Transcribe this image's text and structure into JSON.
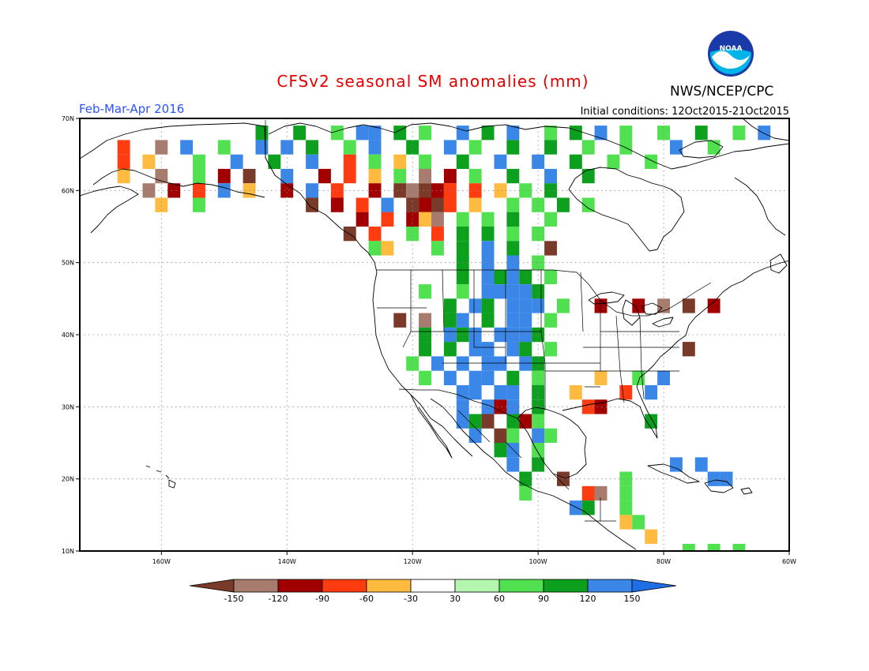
{
  "header": {
    "title": "CFSv2 seasonal SM anomalies (mm)",
    "agency": "NWS/NCEP/CPC",
    "logo_text": "NOAA",
    "period": "Feb-Mar-Apr 2016",
    "initial_conditions": "Initial conditions: 12Oct2015-21Oct2015"
  },
  "map": {
    "lon_range": [
      -173,
      -60
    ],
    "lat_range": [
      10,
      70
    ],
    "x_ticks": [
      {
        "lon": -160,
        "label": "160W"
      },
      {
        "lon": -140,
        "label": "140W"
      },
      {
        "lon": -120,
        "label": "120W"
      },
      {
        "lon": -100,
        "label": "100W"
      },
      {
        "lon": -80,
        "label": "80W"
      },
      {
        "lon": -60,
        "label": "60W"
      }
    ],
    "y_ticks": [
      {
        "lat": 70,
        "label": "70N"
      },
      {
        "lat": 60,
        "label": "60N"
      },
      {
        "lat": 50,
        "label": "50N"
      },
      {
        "lat": 40,
        "label": "40N"
      },
      {
        "lat": 30,
        "label": "30N"
      },
      {
        "lat": 20,
        "label": "20N"
      },
      {
        "lat": 10,
        "label": "10N"
      }
    ]
  },
  "colorbar": {
    "colors": [
      "#7a3a2a",
      "#a87b6f",
      "#a10000",
      "#ff3b10",
      "#ffba40",
      "#ffffff",
      "#b4f5b0",
      "#50e050",
      "#0ca01e",
      "#3a87e8",
      "#1e6ee8"
    ],
    "labels": [
      "-150",
      "-120",
      "-90",
      "-60",
      "-30",
      "30",
      "60",
      "90",
      "120",
      "150"
    ]
  },
  "chart_data": {
    "type": "heatmap",
    "title": "CFSv2 seasonal SM anomalies (mm)",
    "units": "mm",
    "valid_period": "Feb-Mar-Apr 2016",
    "initial_conditions": "12Oct2015-21Oct2015",
    "grid_resolution_deg": 2,
    "cells": [
      [
        -144,
        68,
        90
      ],
      [
        -138,
        68,
        90
      ],
      [
        -132,
        68,
        60
      ],
      [
        -128,
        68,
        150
      ],
      [
        -126,
        68,
        150
      ],
      [
        -122,
        68,
        90
      ],
      [
        -118,
        68,
        60
      ],
      [
        -112,
        68,
        120
      ],
      [
        -108,
        68,
        90
      ],
      [
        -104,
        68,
        120
      ],
      [
        -98,
        68,
        60
      ],
      [
        -94,
        68,
        90
      ],
      [
        -90,
        68,
        120
      ],
      [
        -86,
        68,
        60
      ],
      [
        -80,
        68,
        60
      ],
      [
        -74,
        68,
        90
      ],
      [
        -68,
        68,
        60
      ],
      [
        -64,
        68,
        120
      ],
      [
        -166,
        66,
        -60
      ],
      [
        -160,
        66,
        -120
      ],
      [
        -156,
        66,
        150
      ],
      [
        -150,
        66,
        60
      ],
      [
        -144,
        66,
        150
      ],
      [
        -140,
        66,
        120
      ],
      [
        -136,
        66,
        90
      ],
      [
        -130,
        66,
        60
      ],
      [
        -126,
        66,
        150
      ],
      [
        -120,
        66,
        90
      ],
      [
        -114,
        66,
        120
      ],
      [
        -110,
        66,
        60
      ],
      [
        -104,
        66,
        90
      ],
      [
        -98,
        66,
        90
      ],
      [
        -92,
        66,
        60
      ],
      [
        -86,
        66,
        60
      ],
      [
        -78,
        66,
        150
      ],
      [
        -72,
        66,
        60
      ],
      [
        -166,
        64,
        -60
      ],
      [
        -162,
        64,
        -30
      ],
      [
        -154,
        64,
        60
      ],
      [
        -148,
        64,
        150
      ],
      [
        -142,
        64,
        90
      ],
      [
        -136,
        64,
        150
      ],
      [
        -130,
        64,
        -60
      ],
      [
        -126,
        64,
        60
      ],
      [
        -122,
        64,
        -30
      ],
      [
        -118,
        64,
        60
      ],
      [
        -112,
        64,
        90
      ],
      [
        -106,
        64,
        120
      ],
      [
        -100,
        64,
        120
      ],
      [
        -94,
        64,
        90
      ],
      [
        -88,
        64,
        60
      ],
      [
        -82,
        64,
        60
      ],
      [
        -166,
        62,
        -30
      ],
      [
        -160,
        62,
        -120
      ],
      [
        -154,
        62,
        60
      ],
      [
        -150,
        62,
        -90
      ],
      [
        -146,
        62,
        -150
      ],
      [
        -140,
        62,
        150
      ],
      [
        -134,
        62,
        -90
      ],
      [
        -130,
        62,
        -60
      ],
      [
        -126,
        62,
        -30
      ],
      [
        -122,
        62,
        60
      ],
      [
        -118,
        62,
        -120
      ],
      [
        -114,
        62,
        -90
      ],
      [
        -110,
        62,
        60
      ],
      [
        -104,
        62,
        90
      ],
      [
        -98,
        62,
        120
      ],
      [
        -92,
        62,
        90
      ],
      [
        -162,
        60,
        -120
      ],
      [
        -158,
        60,
        -90
      ],
      [
        -154,
        60,
        -60
      ],
      [
        -150,
        60,
        150
      ],
      [
        -146,
        60,
        -30
      ],
      [
        -140,
        60,
        -90
      ],
      [
        -136,
        60,
        150
      ],
      [
        -132,
        60,
        -60
      ],
      [
        -126,
        60,
        -90
      ],
      [
        -122,
        60,
        -150
      ],
      [
        -120,
        60,
        -120
      ],
      [
        -118,
        60,
        -150
      ],
      [
        -116,
        60,
        -90
      ],
      [
        -114,
        60,
        -60
      ],
      [
        -110,
        60,
        -60
      ],
      [
        -106,
        60,
        -30
      ],
      [
        -102,
        60,
        60
      ],
      [
        -98,
        60,
        90
      ],
      [
        -160,
        58,
        -30
      ],
      [
        -154,
        58,
        60
      ],
      [
        -136,
        58,
        -150
      ],
      [
        -132,
        58,
        -90
      ],
      [
        -128,
        58,
        -60
      ],
      [
        -124,
        58,
        150
      ],
      [
        -120,
        58,
        -150
      ],
      [
        -118,
        58,
        -90
      ],
      [
        -116,
        58,
        -150
      ],
      [
        -114,
        58,
        -60
      ],
      [
        -110,
        58,
        -30
      ],
      [
        -104,
        58,
        60
      ],
      [
        -100,
        58,
        60
      ],
      [
        -96,
        58,
        90
      ],
      [
        -92,
        58,
        60
      ],
      [
        -128,
        56,
        -90
      ],
      [
        -124,
        56,
        -60
      ],
      [
        -120,
        56,
        -90
      ],
      [
        -118,
        56,
        -30
      ],
      [
        -116,
        56,
        -120
      ],
      [
        -112,
        56,
        60
      ],
      [
        -108,
        56,
        60
      ],
      [
        -104,
        56,
        90
      ],
      [
        -98,
        56,
        60
      ],
      [
        -130,
        54,
        -150
      ],
      [
        -126,
        54,
        -60
      ],
      [
        -120,
        54,
        60
      ],
      [
        -116,
        54,
        -60
      ],
      [
        -112,
        54,
        90
      ],
      [
        -108,
        54,
        90
      ],
      [
        -104,
        54,
        60
      ],
      [
        -100,
        54,
        60
      ],
      [
        -126,
        52,
        60
      ],
      [
        -124,
        52,
        -30
      ],
      [
        -116,
        52,
        60
      ],
      [
        -112,
        52,
        90
      ],
      [
        -108,
        52,
        120
      ],
      [
        -104,
        52,
        90
      ],
      [
        -98,
        52,
        -150
      ],
      [
        -112,
        50,
        90
      ],
      [
        -108,
        50,
        120
      ],
      [
        -104,
        50,
        120
      ],
      [
        -100,
        50,
        60
      ],
      [
        -112,
        48,
        90
      ],
      [
        -108,
        48,
        120
      ],
      [
        -106,
        48,
        90
      ],
      [
        -104,
        48,
        120
      ],
      [
        -102,
        48,
        90
      ],
      [
        -98,
        48,
        60
      ],
      [
        -118,
        46,
        60
      ],
      [
        -112,
        46,
        60
      ],
      [
        -108,
        46,
        120
      ],
      [
        -106,
        46,
        150
      ],
      [
        -104,
        46,
        120
      ],
      [
        -102,
        46,
        150
      ],
      [
        -100,
        46,
        90
      ],
      [
        -114,
        44,
        90
      ],
      [
        -110,
        44,
        120
      ],
      [
        -108,
        44,
        90
      ],
      [
        -104,
        44,
        150
      ],
      [
        -102,
        44,
        120
      ],
      [
        -100,
        44,
        150
      ],
      [
        -96,
        44,
        60
      ],
      [
        -90,
        44,
        -90
      ],
      [
        -84,
        44,
        -90
      ],
      [
        -80,
        44,
        -120
      ],
      [
        -76,
        44,
        -150
      ],
      [
        -72,
        44,
        -90
      ],
      [
        -122,
        42,
        -150
      ],
      [
        -118,
        42,
        -120
      ],
      [
        -114,
        42,
        90
      ],
      [
        -112,
        42,
        120
      ],
      [
        -108,
        42,
        90
      ],
      [
        -104,
        42,
        120
      ],
      [
        -102,
        42,
        150
      ],
      [
        -98,
        42,
        60
      ],
      [
        -118,
        40,
        90
      ],
      [
        -114,
        40,
        120
      ],
      [
        -112,
        40,
        90
      ],
      [
        -110,
        40,
        150
      ],
      [
        -106,
        40,
        120
      ],
      [
        -104,
        40,
        150
      ],
      [
        -102,
        40,
        120
      ],
      [
        -100,
        40,
        90
      ],
      [
        -118,
        38,
        90
      ],
      [
        -114,
        38,
        90
      ],
      [
        -110,
        38,
        120
      ],
      [
        -108,
        38,
        150
      ],
      [
        -104,
        38,
        150
      ],
      [
        -102,
        38,
        90
      ],
      [
        -98,
        38,
        60
      ],
      [
        -76,
        38,
        -150
      ],
      [
        -120,
        36,
        60
      ],
      [
        -116,
        36,
        120
      ],
      [
        -112,
        36,
        150
      ],
      [
        -108,
        36,
        150
      ],
      [
        -106,
        36,
        120
      ],
      [
        -102,
        36,
        150
      ],
      [
        -100,
        36,
        90
      ],
      [
        -118,
        34,
        60
      ],
      [
        -114,
        34,
        150
      ],
      [
        -110,
        34,
        150
      ],
      [
        -108,
        34,
        120
      ],
      [
        -104,
        34,
        90
      ],
      [
        -100,
        34,
        60
      ],
      [
        -90,
        34,
        -30
      ],
      [
        -84,
        34,
        60
      ],
      [
        -80,
        34,
        150
      ],
      [
        -112,
        32,
        120
      ],
      [
        -110,
        32,
        150
      ],
      [
        -106,
        32,
        150
      ],
      [
        -104,
        32,
        120
      ],
      [
        -100,
        32,
        90
      ],
      [
        -94,
        32,
        -30
      ],
      [
        -86,
        32,
        -60
      ],
      [
        -82,
        32,
        120
      ],
      [
        -112,
        30,
        150
      ],
      [
        -108,
        30,
        150
      ],
      [
        -106,
        30,
        -90
      ],
      [
        -104,
        30,
        120
      ],
      [
        -100,
        30,
        90
      ],
      [
        -92,
        30,
        -60
      ],
      [
        -90,
        30,
        -90
      ],
      [
        -112,
        28,
        150
      ],
      [
        -110,
        28,
        90
      ],
      [
        -108,
        28,
        -150
      ],
      [
        -104,
        28,
        90
      ],
      [
        -102,
        28,
        -90
      ],
      [
        -100,
        28,
        60
      ],
      [
        -82,
        28,
        90
      ],
      [
        -110,
        26,
        120
      ],
      [
        -106,
        26,
        -150
      ],
      [
        -104,
        26,
        60
      ],
      [
        -100,
        26,
        150
      ],
      [
        -98,
        26,
        60
      ],
      [
        -106,
        24,
        90
      ],
      [
        -104,
        24,
        150
      ],
      [
        -100,
        24,
        60
      ],
      [
        -104,
        22,
        120
      ],
      [
        -100,
        22,
        90
      ],
      [
        -78,
        22,
        150
      ],
      [
        -74,
        22,
        120
      ],
      [
        -102,
        20,
        90
      ],
      [
        -96,
        20,
        -150
      ],
      [
        -86,
        20,
        60
      ],
      [
        -72,
        20,
        150
      ],
      [
        -70,
        20,
        120
      ],
      [
        -102,
        18,
        60
      ],
      [
        -92,
        18,
        -60
      ],
      [
        -90,
        18,
        -120
      ],
      [
        -86,
        18,
        60
      ],
      [
        -94,
        16,
        150
      ],
      [
        -92,
        16,
        90
      ],
      [
        -86,
        16,
        60
      ],
      [
        -86,
        14,
        -30
      ],
      [
        -84,
        14,
        60
      ],
      [
        -82,
        12,
        -30
      ],
      [
        -76,
        10,
        60
      ],
      [
        -72,
        10,
        60
      ],
      [
        -68,
        10,
        60
      ]
    ]
  }
}
